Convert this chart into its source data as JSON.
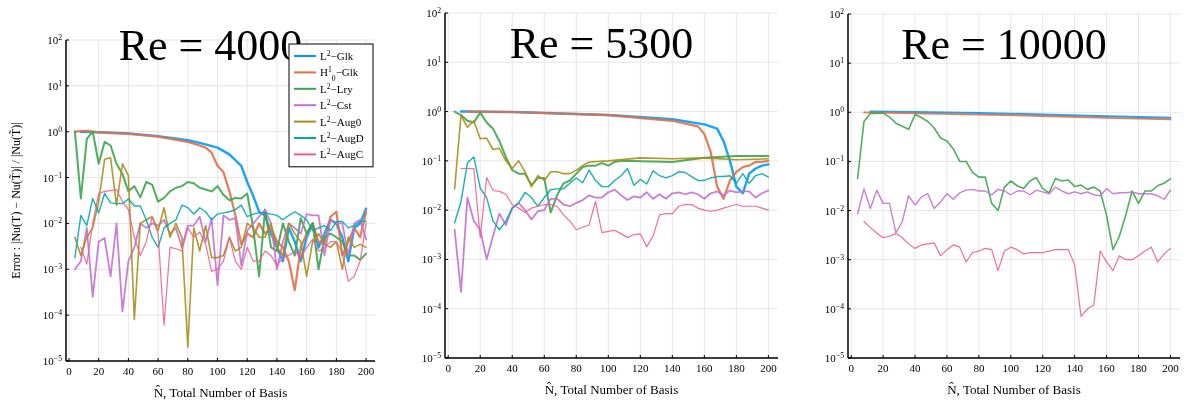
{
  "chart_data": [
    {
      "type": "line",
      "title": "Re = 4000",
      "xlabel": "N̂,  Total Number of Basis",
      "ylabel": "Error : |Nu(T) − Nu(T̃)| / |Nu(T̃)|",
      "log": "y",
      "grid": true,
      "legend": "top right",
      "line_style": "solid",
      "xlim": [
        -2,
        206
      ],
      "ylim": [
        1e-05,
        100
      ],
      "xticks": [
        0,
        20,
        40,
        60,
        80,
        100,
        120,
        140,
        160,
        180,
        200
      ],
      "yticks": [
        {
          "value": 1e-05,
          "label": "10$^{−5}$"
        },
        {
          "value": 0.0001,
          "label": "10$^{−4}$"
        },
        {
          "value": 0.001,
          "label": "10$^{−3}$"
        },
        {
          "value": 0.01,
          "label": "10$^{−2}$"
        },
        {
          "value": 0.1,
          "label": "10$^{−1}$"
        },
        {
          "value": 1,
          "label": "10$^{0}$"
        },
        {
          "value": 10,
          "label": "10$^{1}$"
        },
        {
          "value": 100,
          "label": "10$^{2}$"
        }
      ],
      "x": [
        4,
        8,
        12,
        16,
        20,
        24,
        28,
        32,
        36,
        40,
        44,
        48,
        52,
        56,
        60,
        64,
        68,
        72,
        76,
        80,
        84,
        88,
        92,
        96,
        100,
        104,
        108,
        112,
        116,
        120,
        124,
        128,
        132,
        136,
        140,
        144,
        148,
        152,
        156,
        160,
        164,
        168,
        172,
        176,
        180,
        184,
        188,
        192,
        196,
        200
      ],
      "series": [
        {
          "name": "L$^{2}$−Glk",
          "color": "#009af9",
          "x": [
            8,
            20,
            40,
            60,
            80,
            90,
            100,
            108,
            116,
            120,
            124,
            128,
            132,
            136,
            140,
            144,
            148,
            152,
            156,
            160,
            164,
            168,
            172,
            176,
            180,
            184,
            188,
            192,
            196,
            200
          ],
          "values": [
            1,
            0.97,
            0.92,
            0.8,
            0.65,
            0.55,
            0.45,
            0.32,
            0.18,
            0.08,
            0.04,
            0.018,
            0.015,
            0.006,
            0.003,
            0.0015,
            0.008,
            0.004,
            0.0015,
            0.005,
            0.01,
            0.003,
            0.006,
            0.012,
            0.01,
            0.005,
            0.0015,
            0.008,
            0.01,
            0.021
          ]
        },
        {
          "name": "H$^{1}$$_{0}$−Glk",
          "color": "#e26f46",
          "x": [
            4,
            12,
            20,
            40,
            60,
            80,
            88,
            92,
            96,
            100,
            104,
            108,
            112,
            116,
            120,
            124,
            128,
            132,
            136,
            140,
            144,
            148,
            152,
            156,
            160,
            164,
            168,
            172,
            176,
            180,
            184,
            188,
            192,
            196,
            200
          ],
          "values": [
            1,
            1.05,
            0.97,
            0.9,
            0.78,
            0.6,
            0.5,
            0.45,
            0.35,
            0.18,
            0.13,
            0.05,
            0.015,
            0.0035,
            0.006,
            0.005,
            0.01,
            0.006,
            0.008,
            0.004,
            0.003,
            0.0015,
            0.00035,
            0.003,
            0.006,
            0.01,
            0.004,
            0.0035,
            0.014,
            0.018,
            0.002,
            0.004,
            0.008,
            0.005,
            0.018
          ]
        },
        {
          "name": "L$^{2}$−Lry",
          "color": "#3da44d",
          "values": [
            1,
            0.035,
            0.7,
            1,
            0.2,
            0.6,
            0.5,
            0.2,
            0.12,
            0.05,
            0.065,
            0.037,
            0.08,
            0.07,
            0.03,
            0.036,
            0.05,
            0.06,
            0.065,
            0.08,
            0.075,
            0.06,
            0.055,
            0.05,
            0.065,
            0.042,
            0.032,
            0.036,
            0.035,
            0.045,
            0.008,
            0.0007,
            0.02,
            0.003,
            0.0025,
            0.01,
            0.004,
            0.002,
            0.013,
            0.006,
            0.01,
            0.001,
            0.005,
            0.006,
            0.005,
            0.004,
            0.002,
            0.002,
            0.0016,
            0.0022
          ]
        },
        {
          "name": "L$^{2}$−Cst",
          "color": "#c271d2",
          "values": [
            0.001,
            0.0015,
            0.008,
            0.00025,
            0.004,
            0.0048,
            0.0007,
            0.01,
            0.00012,
            0.0015,
            0.003,
            0.01,
            0.008,
            0.01,
            0.009,
            0.012,
            0.006,
            0.008,
            0.003,
            0.009,
            0.009,
            0.014,
            0.004,
            0.013,
            0.00045,
            0.015,
            0.012,
            0.013,
            0.0012,
            0.007,
            0.01,
            0.014,
            0.02,
            0.01,
            0.001,
            0.004,
            0.01,
            0.008,
            0.006,
            0.016,
            0.015,
            0.015,
            0.002,
            0.012,
            0.01,
            0.01,
            0.002,
            0.01,
            0.012,
            0.0045
          ]
        },
        {
          "name": "L$^{2}$−Aug0",
          "color": "#ac8d18",
          "values": [
            0.005,
            0.002,
            0.005,
            0.008,
            0.03,
            0.25,
            0.27,
            0.025,
            0.2,
            0.11,
            8e-05,
            0.01,
            0.012,
            0.014,
            0.007,
            0.022,
            0.005,
            0.01,
            0.005,
            2e-05,
            0.008,
            0.0025,
            0.009,
            0.0018,
            0.0018,
            0.002,
            0.005,
            0.0025,
            0.003,
            0.01,
            0.008,
            0.005,
            0.005,
            0.01,
            0.003,
            0.002,
            0.01,
            0.006,
            0.004,
            0.0007,
            0.004,
            0.006,
            0.0035,
            0.003,
            0.004,
            0.001,
            0.005,
            0.003,
            0.0035,
            0.003
          ]
        },
        {
          "name": "L$^{2}$−AugD",
          "color": "#00a9ad",
          "values": [
            0.0018,
            0.015,
            0.009,
            0.035,
            0.017,
            0.045,
            0.028,
            0.027,
            0.027,
            0.034,
            0.024,
            0.024,
            0.012,
            0.005,
            0.003,
            0.008,
            0.01,
            0.012,
            0.025,
            0.022,
            0.016,
            0.022,
            0.018,
            0.012,
            0.016,
            0.017,
            0.018,
            0.02,
            0.025,
            0.014,
            0.016,
            0.017,
            0.017,
            0.016,
            0.015,
            0.012,
            0.015,
            0.018,
            0.015,
            0.012,
            0.007,
            0.008,
            0.009,
            0.007,
            0.011,
            0.011,
            0.008,
            0.009,
            0.011,
            0.011
          ]
        },
        {
          "name": "L$^{2}$−AugC",
          "color": "#ed5e93",
          "values": [
            null,
            0.003,
            0.0013,
            0.01,
            0.045,
            0.05,
            0.052,
            0.055,
            0.03,
            0.02,
            0.005,
            0.002,
            0.004,
            0.014,
            0.006,
            6e-05,
            0.003,
            0.0028,
            0.0025,
            0.008,
            0.005,
            0.0065,
            0.0035,
            0.0009,
            0.001,
            0.0015,
            0.005,
            0.0015,
            0.001,
            0.003,
            0.0015,
            0.0015,
            0.0025,
            0.002,
            0.0012,
            0.0018,
            0.002,
            0.0025,
            0.0018,
            0.003,
            0.0045,
            0.0025,
            0.003,
            0.004,
            0.004,
            0.0023,
            0.00055,
            0.0007,
            0.0015,
            0.01
          ]
        }
      ]
    },
    {
      "type": "line",
      "title": "Re = 5300",
      "xlabel": "N̂,  Total Number of Basis",
      "log": "y",
      "grid": true,
      "line_style": "solid",
      "xlim": [
        -2,
        206
      ],
      "ylim": [
        1e-05,
        100
      ],
      "xticks": [
        0,
        20,
        40,
        60,
        80,
        100,
        120,
        140,
        160,
        180,
        200
      ],
      "yticks": [
        {
          "value": 1e-05,
          "label": "10$^{−5}$"
        },
        {
          "value": 0.0001,
          "label": "10$^{−4}$"
        },
        {
          "value": 0.001,
          "label": "10$^{−3}$"
        },
        {
          "value": 0.01,
          "label": "10$^{−2}$"
        },
        {
          "value": 0.1,
          "label": "10$^{−1}$"
        },
        {
          "value": 1,
          "label": "10$^{0}$"
        },
        {
          "value": 10,
          "label": "10$^{1}$"
        },
        {
          "value": 100,
          "label": "10$^{2}$"
        }
      ],
      "x": [
        4,
        8,
        12,
        16,
        20,
        24,
        28,
        32,
        36,
        40,
        44,
        48,
        52,
        56,
        60,
        64,
        68,
        72,
        76,
        80,
        84,
        88,
        92,
        96,
        100,
        104,
        108,
        112,
        116,
        120,
        124,
        128,
        132,
        136,
        140,
        144,
        148,
        152,
        156,
        160,
        164,
        168,
        172,
        176,
        180,
        184,
        188,
        192,
        196,
        200
      ],
      "series": [
        {
          "color": "#009af9",
          "x": [
            8,
            40,
            100,
            140,
            160,
            168,
            172,
            176,
            180,
            184,
            188,
            192,
            196,
            200
          ],
          "values": [
            1,
            0.98,
            0.85,
            0.7,
            0.55,
            0.45,
            0.25,
            0.1,
            0.03,
            0.022,
            0.055,
            0.07,
            0.08,
            0.085
          ]
        },
        {
          "color": "#e26f46",
          "x": [
            12,
            40,
            100,
            140,
            156,
            160,
            164,
            168,
            172,
            176,
            180,
            184,
            188,
            192,
            196,
            200
          ],
          "values": [
            1,
            0.98,
            0.85,
            0.65,
            0.5,
            0.35,
            0.15,
            0.03,
            0.017,
            0.04,
            0.06,
            0.075,
            0.08,
            0.095,
            0.095,
            0.1
          ]
        },
        {
          "color": "#3da44d",
          "x": [
            4,
            8,
            12,
            16,
            20,
            24,
            28,
            32,
            36,
            40,
            44,
            48,
            52,
            56,
            60,
            64,
            68,
            72,
            76,
            80,
            84,
            88,
            92,
            96,
            100,
            104,
            108,
            140,
            160,
            180,
            200
          ],
          "values": [
            1,
            0.85,
            0.65,
            0.6,
            0.95,
            0.6,
            0.45,
            0.25,
            0.12,
            0.065,
            0.055,
            0.055,
            0.032,
            0.045,
            0.045,
            0.009,
            0.02,
            0.035,
            0.04,
            0.055,
            0.075,
            0.08,
            0.08,
            0.09,
            0.08,
            0.095,
            0.1,
            0.095,
            0.115,
            0.125,
            0.125
          ]
        },
        {
          "color": "#c271d2",
          "values": [
            0.004,
            0.00022,
            0.018,
            0.006,
            0.004,
            0.001,
            0.003,
            0.0085,
            0.005,
            0.011,
            0.014,
            0.01,
            0.0065,
            0.0095,
            0.01,
            0.017,
            0.017,
            0.013,
            0.012,
            0.014,
            0.016,
            0.02,
            0.018,
            0.018,
            0.023,
            0.026,
            0.02,
            0.016,
            0.019,
            0.018,
            0.023,
            0.017,
            0.021,
            0.017,
            0.022,
            0.023,
            0.021,
            0.023,
            0.021,
            0.017,
            0.022,
            0.024,
            0.02,
            0.025,
            0.023,
            0.024,
            0.024,
            0.018,
            0.022,
            0.025
          ]
        },
        {
          "color": "#ac8d18",
          "x": [
            4,
            8,
            12,
            16,
            20,
            24,
            28,
            32,
            36,
            40,
            44,
            48,
            52,
            56,
            60,
            64,
            68,
            72,
            76,
            80,
            84,
            88,
            100,
            120,
            140,
            160,
            180,
            200
          ],
          "values": [
            0.027,
            0.85,
            0.48,
            0.65,
            0.28,
            0.29,
            0.17,
            0.18,
            0.1,
            0.07,
            0.1,
            0.06,
            0.03,
            0.05,
            0.04,
            0.06,
            0.06,
            0.055,
            0.055,
            0.065,
            0.08,
            0.095,
            0.1,
            0.115,
            0.11,
            0.115,
            0.105,
            0.11
          ]
        },
        {
          "color": "#00a9ad",
          "values": [
            0.0055,
            0.015,
            0.09,
            0.12,
            0.028,
            0.018,
            0.006,
            0.004,
            0.006,
            0.011,
            0.014,
            0.023,
            0.018,
            0.012,
            0.018,
            0.026,
            0.027,
            0.027,
            0.035,
            0.045,
            0.036,
            0.065,
            0.04,
            0.03,
            0.03,
            0.04,
            0.05,
            0.07,
            0.032,
            0.042,
            0.034,
            0.063,
            0.05,
            0.045,
            0.05,
            0.06,
            0.058,
            0.048,
            0.04,
            0.04,
            0.045,
            0.048,
            0.048,
            0.05,
            0.035,
            0.055,
            0.035,
            0.05,
            0.055,
            0.047
          ]
        },
        {
          "color": "#ed5e93",
          "values": [
            null,
            0.07,
            0.07,
            0.07,
            0.0028,
            0.046,
            0.025,
            0.024,
            0.021,
            0.013,
            0.011,
            0.009,
            0.011,
            0.012,
            0.013,
            0.013,
            0.012,
            0.008,
            0.006,
            0.004,
            0.0045,
            0.005,
            0.015,
            0.0035,
            0.0037,
            0.0039,
            0.0033,
            0.0028,
            0.0032,
            0.0033,
            0.0018,
            0.003,
            0.008,
            0.0085,
            0.0085,
            0.012,
            0.013,
            0.013,
            0.011,
            0.01,
            0.0095,
            0.01,
            0.011,
            0.012,
            0.013,
            0.012,
            0.012,
            0.012,
            0.011,
            0.01
          ]
        }
      ]
    },
    {
      "type": "line",
      "title": "Re = 10000",
      "xlabel": "N̂,  Total Number of Basis",
      "log": "y",
      "grid": true,
      "line_style": "solid",
      "xlim": [
        -2,
        206
      ],
      "ylim": [
        1e-05,
        100
      ],
      "xticks": [
        0,
        20,
        40,
        60,
        80,
        100,
        120,
        140,
        160,
        180,
        200
      ],
      "yticks": [
        {
          "value": 1e-05,
          "label": "10$^{−5}$"
        },
        {
          "value": 0.0001,
          "label": "10$^{−4}$"
        },
        {
          "value": 0.001,
          "label": "10$^{−3}$"
        },
        {
          "value": 0.01,
          "label": "10$^{−2}$"
        },
        {
          "value": 0.1,
          "label": "10$^{−1}$"
        },
        {
          "value": 1,
          "label": "10$^{0}$"
        },
        {
          "value": 10,
          "label": "10$^{1}$"
        },
        {
          "value": 100,
          "label": "10$^{2}$"
        }
      ],
      "x": [
        4,
        8,
        12,
        16,
        20,
        24,
        28,
        32,
        36,
        40,
        44,
        48,
        52,
        56,
        60,
        64,
        68,
        72,
        76,
        80,
        84,
        88,
        92,
        96,
        100,
        104,
        108,
        112,
        116,
        120,
        124,
        128,
        132,
        136,
        140,
        144,
        148,
        152,
        156,
        160,
        164,
        168,
        172,
        176,
        180,
        184,
        188,
        192,
        196,
        200
      ],
      "series": [
        {
          "color": "#009af9",
          "x": [
            12,
            40,
            80,
            120,
            160,
            200
          ],
          "values": [
            1.04,
            1.01,
            0.97,
            0.9,
            0.83,
            0.77
          ]
        },
        {
          "color": "#e26f46",
          "x": [
            8,
            40,
            80,
            120,
            160,
            200
          ],
          "values": [
            1,
            0.95,
            0.9,
            0.84,
            0.77,
            0.72
          ]
        },
        {
          "color": "#3da44d",
          "values": [
            0.045,
            0.65,
            0.95,
            0.95,
            0.97,
            0.8,
            0.6,
            0.52,
            0.45,
            0.9,
            0.78,
            0.65,
            0.48,
            0.3,
            0.26,
            0.18,
            0.1,
            0.1,
            0.06,
            0.048,
            0.048,
            0.014,
            0.01,
            0.03,
            0.04,
            0.032,
            0.028,
            0.04,
            0.047,
            0.028,
            0.023,
            0.045,
            0.04,
            0.042,
            0.031,
            0.033,
            0.027,
            0.03,
            0.025,
            0.008,
            0.0016,
            0.003,
            0.008,
            0.025,
            0.014,
            0.025,
            0.025,
            0.032,
            0.036,
            0.044
          ]
        },
        {
          "color": "#c271d2",
          "values": [
            0.0085,
            0.028,
            0.011,
            0.026,
            0.014,
            0.014,
            0.0035,
            0.006,
            0.02,
            0.013,
            0.019,
            0.022,
            0.011,
            0.015,
            0.022,
            0.017,
            0.023,
            0.026,
            0.027,
            0.025,
            0.025,
            0.021,
            0.027,
            0.025,
            0.021,
            0.025,
            0.025,
            0.021,
            0.026,
            0.024,
            0.022,
            0.03,
            0.025,
            0.022,
            0.024,
            0.022,
            0.024,
            0.021,
            0.02,
            0.028,
            0.022,
            0.023,
            0.023,
            0.024,
            0.022,
            0.022,
            0.022,
            0.02,
            0.017,
            0.026
          ]
        },
        {
          "color": "#ed5e93",
          "values": [
            null,
            0.006,
            0.0045,
            0.0035,
            0.0028,
            0.003,
            0.0034,
            0.0028,
            0.0021,
            0.0017,
            0.002,
            0.0021,
            0.0022,
            0.0012,
            0.0016,
            0.002,
            0.0018,
            0.0009,
            0.0014,
            0.0015,
            0.0017,
            0.0016,
            0.0006,
            0.0015,
            0.0018,
            0.0016,
            0.0013,
            0.0014,
            0.0014,
            0.0014,
            0.0015,
            0.0016,
            0.0016,
            0.0016,
            0.0008,
            7e-05,
            0.0001,
            0.00012,
            0.0015,
            0.0009,
            0.0006,
            0.0012,
            0.001,
            0.001,
            0.0012,
            0.0015,
            0.0018,
            0.0009,
            0.0013,
            0.0017
          ]
        }
      ]
    }
  ]
}
